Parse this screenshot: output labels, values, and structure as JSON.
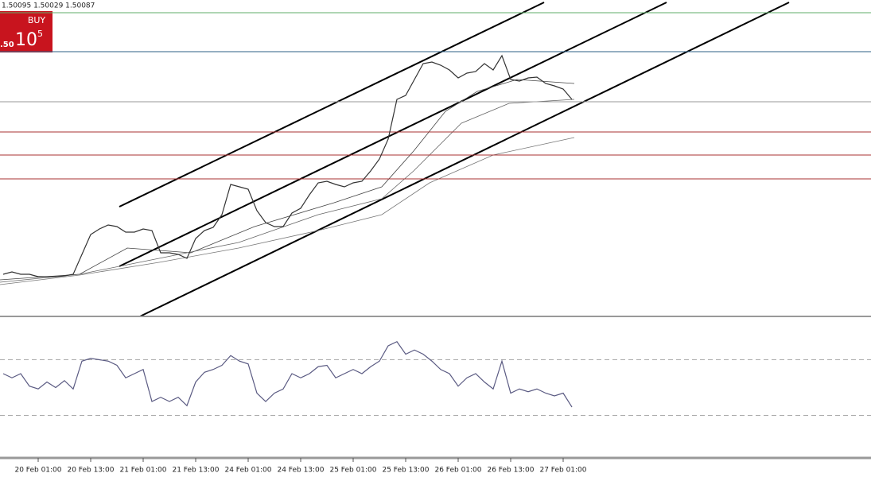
{
  "quote": "1.50095 1.50029 1.50087",
  "trade_panel": {
    "button": "BUY",
    "bid": ".50",
    "big": "10",
    "small": "5"
  },
  "chart_data": [
    {
      "type": "line",
      "color": "#333333",
      "categories": [
        null,
        null,
        null,
        null,
        "20 Feb 01:00",
        null,
        null,
        null,
        null,
        null,
        "20 Feb 13:00",
        null,
        null,
        null,
        null,
        null,
        "21 Feb 01:00",
        null,
        null,
        null,
        null,
        null,
        "21 Feb 13:00",
        null,
        null,
        null,
        null,
        null,
        "24 Feb 01:00",
        null,
        null,
        null,
        null,
        null,
        "24 Feb 13:00",
        null,
        null,
        null,
        null,
        null,
        "25 Feb 01:00",
        null,
        null,
        null,
        null,
        null,
        "25 Feb 13:00",
        null,
        null,
        null,
        null,
        null,
        "26 Feb 01:00",
        null,
        null,
        null,
        null,
        null,
        "26 Feb 13:00",
        null,
        null,
        null,
        null,
        null,
        "27 Feb 01:00",
        null
      ],
      "values": [
        1.48995,
        1.4901,
        1.48995,
        1.48995,
        1.4898,
        1.4898,
        1.4898,
        1.48985,
        1.48995,
        1.4912,
        1.49245,
        1.4928,
        1.49305,
        1.49295,
        1.4926,
        1.4926,
        1.4928,
        1.4927,
        1.4913,
        1.4913,
        1.4912,
        1.49095,
        1.4922,
        1.4927,
        1.4929,
        1.4937,
        1.4956,
        1.49545,
        1.4953,
        1.49395,
        1.4932,
        1.49295,
        1.49295,
        1.4938,
        1.4941,
        1.49495,
        1.4957,
        1.4958,
        1.4956,
        1.49545,
        1.4957,
        1.4958,
        1.49645,
        1.4972,
        1.49845,
        1.50095,
        1.5012,
        1.5022,
        1.5032,
        1.5033,
        1.5031,
        1.5028,
        1.5023,
        1.5026,
        1.5027,
        1.5032,
        1.5028,
        1.5037,
        1.5022,
        1.5021,
        1.5023,
        1.50235,
        1.50195,
        1.5018,
        1.5016,
        1.50095
      ],
      "ylim": [
        1.4873,
        1.5072
      ],
      "hlines": [
        {
          "value": 1.5064,
          "color": "#5fae6a"
        },
        {
          "value": 1.50395,
          "color": "#2d5f86"
        },
        {
          "value": 1.5008,
          "color": "#999999"
        },
        {
          "value": 1.4989,
          "color": "#a83232"
        },
        {
          "value": 1.49745,
          "color": "#a83232"
        },
        {
          "value": 1.49595,
          "color": "#a83232"
        }
      ]
    },
    {
      "type": "line",
      "color": "#5a5a82",
      "values": [
        60,
        57,
        60,
        51,
        49,
        54,
        50,
        55,
        49,
        69,
        71,
        70,
        69,
        66,
        57,
        60,
        63,
        40,
        43,
        40,
        43,
        37,
        54,
        61,
        63,
        66,
        73,
        69,
        67,
        46,
        40,
        46,
        49,
        60,
        57,
        60,
        65,
        66,
        57,
        60,
        63,
        60,
        65,
        69,
        80,
        83,
        74,
        77,
        74,
        69,
        63,
        60,
        51,
        57,
        60,
        54,
        49,
        69,
        46,
        49,
        47,
        49,
        46,
        44,
        46,
        36
      ],
      "ylim": [
        0,
        100
      ],
      "levels": [
        30,
        70
      ]
    }
  ]
}
